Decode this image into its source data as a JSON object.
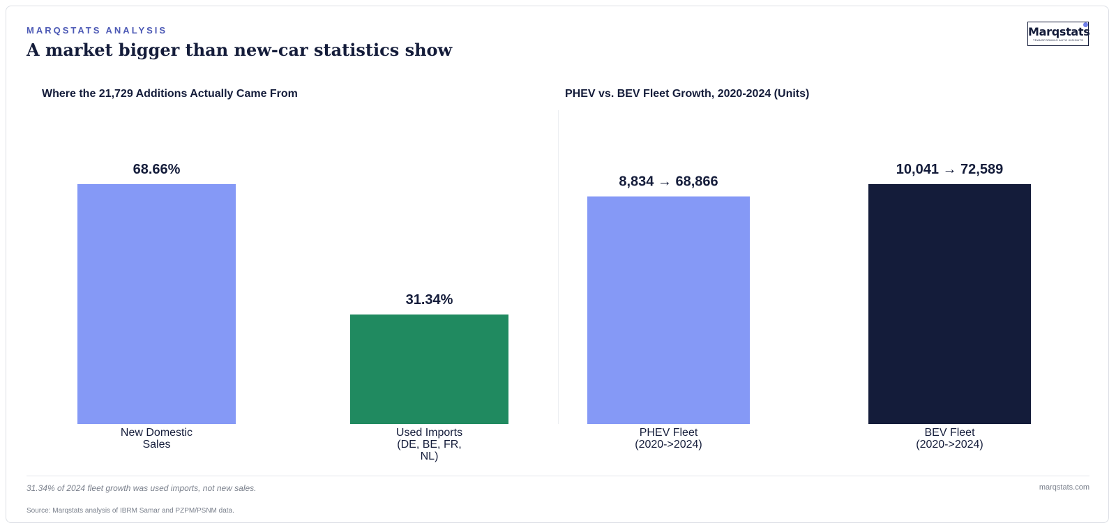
{
  "header": {
    "eyebrow": "MARQSTATS ANALYSIS",
    "title": "A market bigger than new-car statistics show"
  },
  "logo": {
    "name": "Marqstats",
    "tagline": "TRANSFORMING AUTO INSIGHTS"
  },
  "footer": {
    "note": "31.34% of 2024 fleet growth was used imports, not new sales.",
    "site": "marqstats.com",
    "source": "Source: Marqstats analysis of IBRM Samar and PZPM/PSNM data."
  },
  "colors": {
    "periwinkle": "#8599f6",
    "green": "#208a60",
    "navy": "#141c3a",
    "text": "#141c3a"
  },
  "chart_data": [
    {
      "type": "bar",
      "title": "Where the 21,729 Additions Actually Came From",
      "categories": [
        [
          "New Domestic",
          "Sales"
        ],
        [
          "Used Imports",
          "(DE, BE, FR,",
          "NL)"
        ]
      ],
      "values": [
        68.66,
        31.34
      ],
      "value_labels": [
        "68.66%",
        "31.34%"
      ],
      "unit": "%",
      "colors": [
        "#8599f6",
        "#208a60"
      ],
      "ylim": [
        0,
        68.66
      ],
      "grid": false
    },
    {
      "type": "bar",
      "title": "PHEV vs. BEV Fleet Growth, 2020-2024 (Units)",
      "categories": [
        [
          "PHEV Fleet",
          "(2020->2024)"
        ],
        [
          "BEV Fleet",
          "(2020->2024)"
        ]
      ],
      "series": [
        {
          "values": [
            8834,
            10041
          ]
        },
        {
          "values": [
            68866,
            72589
          ]
        }
      ],
      "value_labels": [
        "8,834 → 68,866",
        "10,041 → 72,589"
      ],
      "colors": [
        "#8599f6",
        "#141c3a"
      ],
      "ylim": [
        0,
        72589
      ],
      "grid": false
    }
  ]
}
